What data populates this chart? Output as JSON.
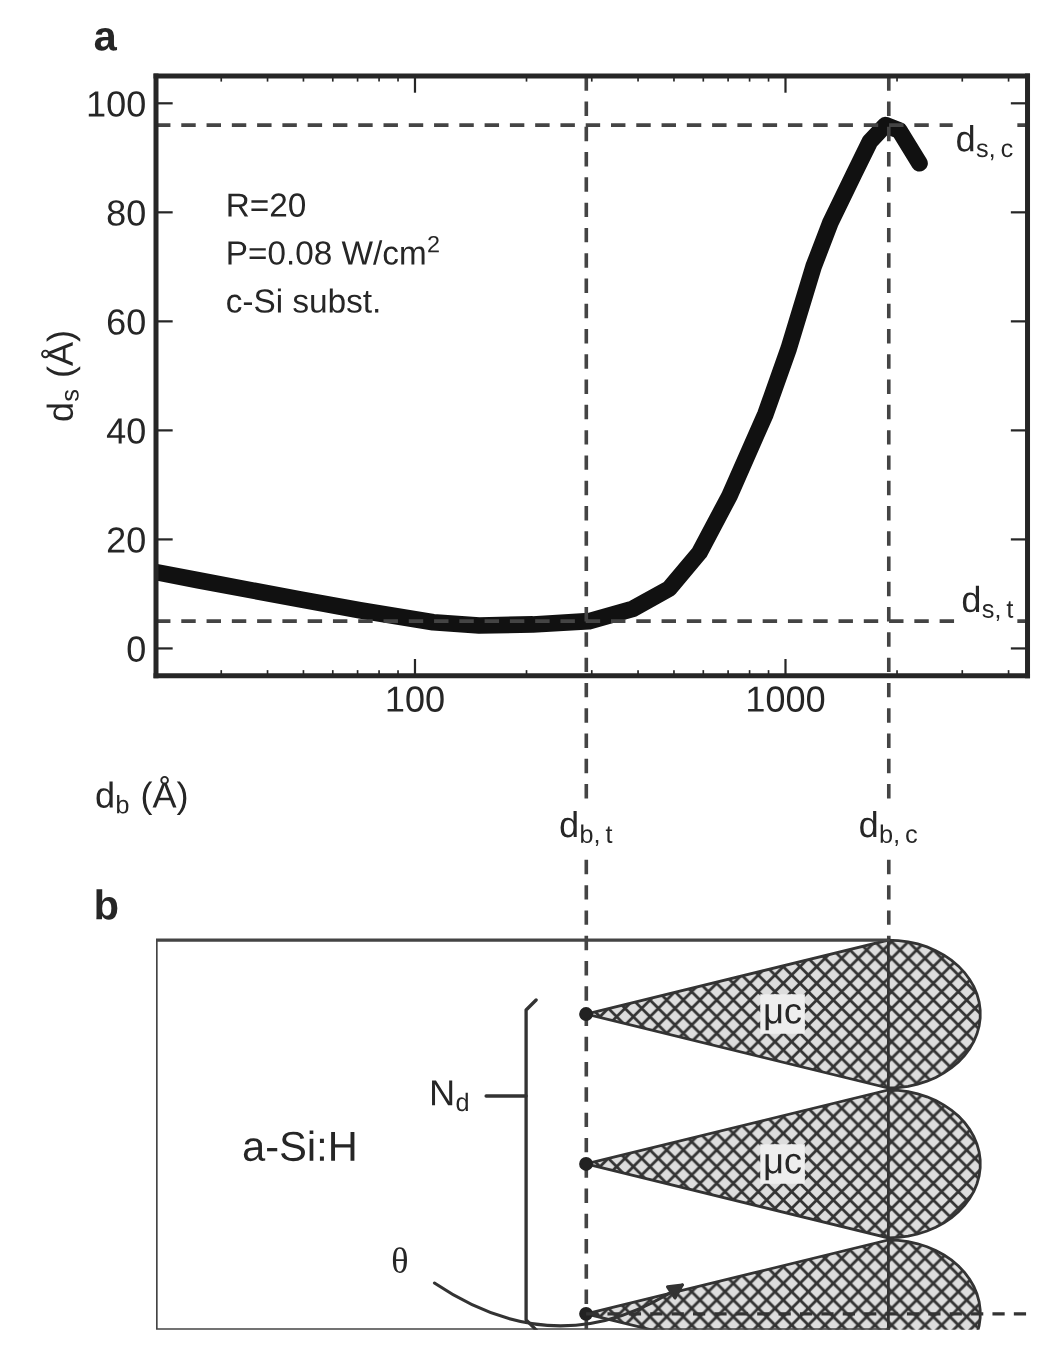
{
  "chart_data": [
    {
      "type": "line",
      "title": "a",
      "xlabel": "d$_{b}$ (Å)",
      "ylabel": "d$_{s}$ (Å)",
      "log": "x",
      "xlim": [
        20,
        4500
      ],
      "xticks": [
        100,
        1000
      ],
      "ylim": [
        -5,
        105
      ],
      "yticks": [
        0,
        20,
        40,
        60,
        80,
        100
      ],
      "grid": false,
      "legend": false,
      "series": [
        {
          "color": "#111111",
          "x": [
            20,
            26,
            49,
            71,
            112,
            149,
            208,
            295,
            388,
            486,
            586,
            706,
            883,
            1020,
            1190,
            1320,
            1530,
            1690,
            1860,
            2030,
            2300
          ],
          "values": [
            14,
            12.5,
            9,
            7,
            4.8,
            4.2,
            4.4,
            5,
            7.3,
            11,
            17.6,
            28,
            43,
            55,
            70,
            78,
            87,
            93,
            96,
            95,
            89
          ]
        }
      ],
      "ref_lines": [
        {
          "axis": "x",
          "value": 290,
          "label": "d$_{b,t}$",
          "line_style": "dashed"
        },
        {
          "axis": "x",
          "value": 1900,
          "label": "d$_{b,c}$",
          "line_style": "dashed"
        },
        {
          "axis": "y",
          "value": 5,
          "label": "d$_{s,t}$",
          "line_style": "dashed"
        },
        {
          "axis": "y",
          "value": 96,
          "label": "d$_{s,c}$",
          "line_style": "dashed"
        }
      ],
      "annotations": [
        "R=20\nP=0.08 W/cm$^{2}$\nc-Si subst."
      ]
    },
    {
      "type": "other",
      "title": "b",
      "annotations": [
        "a-Si:H",
        "μc",
        "μc",
        "N$_{d}$",
        "θ"
      ]
    }
  ]
}
